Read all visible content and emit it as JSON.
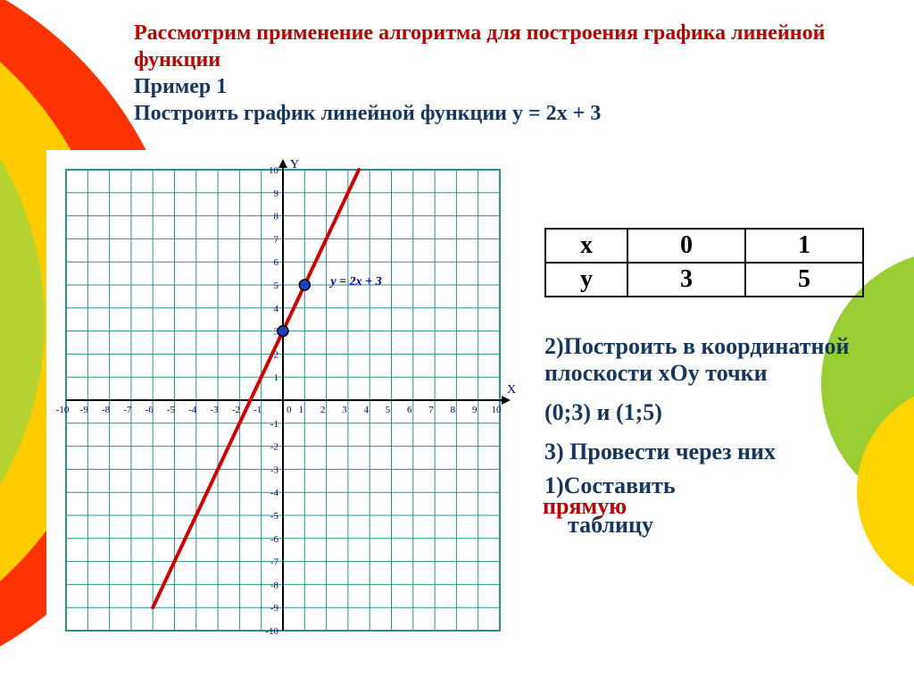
{
  "header": {
    "line1_red": "Рассмотрим применение алгоритма для построения графика линейной функции",
    "line2_navy": "Пример 1",
    "line3_navy": "Построить график линейной функции  y = 2x + 3"
  },
  "chart": {
    "type": "line",
    "xlim": [
      -10,
      10
    ],
    "ylim": [
      -10,
      10
    ],
    "xtick_step": 1,
    "ytick_step": 1,
    "grid_color": "#2d8f8f",
    "grid_stroke": 1,
    "axis_color": "#000000",
    "axis_stroke": 2,
    "background_color": "#ffffff",
    "x_axis_label": "X",
    "y_axis_label": "Y",
    "tick_font_size": 11,
    "tick_color": "#000080",
    "line_series": {
      "label": "y = 2x + 3",
      "label_color": "#000099",
      "label_fontsize": 14,
      "label_fontstyle": "italic",
      "label_pos": [
        2.2,
        5.0
      ],
      "color": "#d20000",
      "width": 4,
      "p1": [
        -6,
        -9
      ],
      "p2": [
        3.5,
        10
      ]
    },
    "points": [
      {
        "x": 0,
        "y": 3,
        "fill": "#2040c0",
        "stroke": "#000000",
        "r": 6
      },
      {
        "x": 1,
        "y": 5,
        "fill": "#2040c0",
        "stroke": "#000000",
        "r": 6
      }
    ]
  },
  "value_table": {
    "header_row": [
      "x",
      "0",
      "1"
    ],
    "data_row": [
      "y",
      "3",
      "5"
    ]
  },
  "steps": {
    "s2a": "2)Построить в координатной плоскости хОу точки",
    "s2b": "(0;3) и (1;5)",
    "s3": "3) Провести через них",
    "s3_red_tail": "прямую",
    "s1": "1)Составить",
    "s1b": "    таблицу"
  },
  "decor": {
    "arc_outer": "#ff3300",
    "arc_mid": "#ffcc00",
    "arc_inner": "#b7d332",
    "right_blob_green": "#9acd32",
    "right_blob_yellow": "#ffd400"
  }
}
